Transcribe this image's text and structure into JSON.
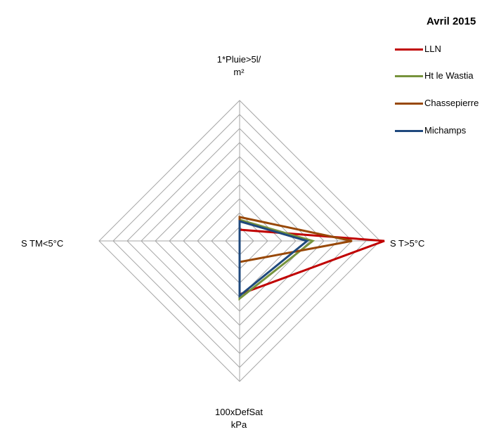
{
  "chart_data": {
    "type": "radar",
    "title": "Avril  2015",
    "axes": [
      "1*Pluie>5l/m²",
      "S T>5°C",
      "100xDefSat kPa",
      "S TM<5°C"
    ],
    "axis_label_lines": [
      [
        "1*Pluie>5l/",
        "m²"
      ],
      [
        "S T>5°C"
      ],
      [
        "100xDefSat",
        "kPa"
      ],
      [
        "S TM<5°C"
      ]
    ],
    "scale": {
      "min": 0,
      "max": 10,
      "rings": 10
    },
    "series": [
      {
        "name": "LLN",
        "color": "#c00000",
        "values": [
          0.8,
          10.3,
          3.8,
          0
        ]
      },
      {
        "name": "Ht le Wastia",
        "color": "#77933c",
        "values": [
          1.5,
          5.2,
          4.1,
          0
        ]
      },
      {
        "name": "Chassepierre",
        "color": "#984807",
        "values": [
          1.7,
          8.0,
          1.5,
          0
        ]
      },
      {
        "name": "Michamps",
        "color": "#1f497d",
        "values": [
          1.4,
          4.8,
          3.9,
          0
        ]
      }
    ],
    "legend_position": "top-right",
    "grid": true
  }
}
